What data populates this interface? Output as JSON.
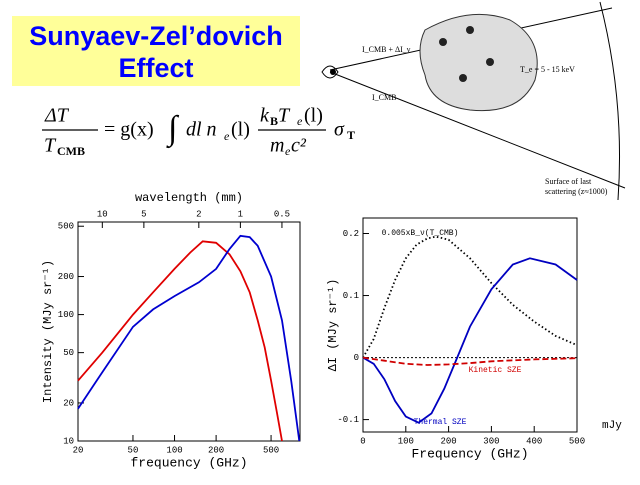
{
  "slide": {
    "title_line1": "Sunyaev-Zel’dovich",
    "title_line2": "Effect",
    "equation": {
      "lhs_num": "ΔT",
      "lhs_den": "T",
      "lhs_den_sub": "CMB",
      "g": "= g(x)",
      "integral": "∫",
      "integrand": "dl n",
      "ne_sub": "e",
      "ne_arg": "(l)",
      "frac_num": "k",
      "frac_num_sub": "B",
      "frac_num2": " T",
      "frac_num2_sub": "e",
      "frac_num2_arg": "(l)",
      "frac_den": "m",
      "frac_den_sub": "e",
      "frac_den2": " c²",
      "sigma": "σ",
      "sigma_sub": "T"
    },
    "diagram": {
      "ray_top": "I_CMB + ΔI_ν",
      "ray_bottom": "I_CMB",
      "cluster_temp": "T_e = 5 - 15 keV",
      "surface_line1": "Surface of last",
      "surface_line2": "scattering (z≈1000)"
    },
    "unit_note": "mJy"
  },
  "chart_data": [
    {
      "type": "line",
      "xlabel": "frequency (GHz)",
      "ylabel": "Intensity (MJy sr⁻¹)",
      "x2label": "wavelength (mm)",
      "xlog": true,
      "ylog": true,
      "xlim": [
        20,
        810
      ],
      "ylim": [
        10,
        540
      ],
      "xticks": [
        20,
        50,
        100,
        200,
        500
      ],
      "yticks": [
        10,
        20,
        50,
        100,
        200,
        500
      ],
      "x2lim": [
        15,
        0.37
      ],
      "x2ticks": [
        10,
        5,
        2,
        1,
        0.5
      ],
      "series": [
        {
          "color": "#e00000",
          "style": "solid",
          "x": [
            20,
            30,
            50,
            70,
            100,
            130,
            160,
            200,
            250,
            300,
            350,
            400,
            450,
            500,
            550,
            600
          ],
          "values": [
            30,
            50,
            100,
            150,
            230,
            310,
            380,
            370,
            300,
            220,
            150,
            90,
            55,
            30,
            17,
            10
          ]
        },
        {
          "color": "#0000d0",
          "style": "solid",
          "x": [
            20,
            30,
            50,
            70,
            100,
            150,
            200,
            250,
            300,
            350,
            400,
            500,
            600,
            700,
            800
          ],
          "values": [
            18,
            35,
            80,
            110,
            140,
            180,
            230,
            330,
            420,
            410,
            350,
            200,
            90,
            30,
            10
          ]
        }
      ]
    },
    {
      "type": "line",
      "xlabel": "Frequency (GHz)",
      "ylabel": "ΔI (MJy sr⁻¹)",
      "xlog": false,
      "ylog": false,
      "xlim": [
        0,
        500
      ],
      "ylim": [
        -0.12,
        0.225
      ],
      "xticks": [
        0,
        100,
        200,
        300,
        400,
        500
      ],
      "yticks": [
        -0.1,
        0,
        0.1,
        0.2
      ],
      "series": [
        {
          "name": "0.005xB_ν(T_CMB)",
          "color": "#000000",
          "style": "dotted",
          "x": [
            0,
            25,
            50,
            75,
            100,
            125,
            150,
            170,
            200,
            250,
            300,
            350,
            400,
            450,
            500
          ],
          "values": [
            0,
            0.03,
            0.08,
            0.125,
            0.16,
            0.182,
            0.192,
            0.195,
            0.19,
            0.16,
            0.12,
            0.085,
            0.058,
            0.035,
            0.02
          ]
        },
        {
          "name": "Thermal SZE",
          "color": "#0000c0",
          "style": "solid",
          "x": [
            0,
            25,
            50,
            75,
            100,
            130,
            160,
            190,
            220,
            250,
            300,
            350,
            390,
            450,
            500
          ],
          "values": [
            0,
            -0.01,
            -0.035,
            -0.07,
            -0.095,
            -0.105,
            -0.09,
            -0.05,
            0,
            0.05,
            0.11,
            0.15,
            0.16,
            0.15,
            0.125
          ]
        },
        {
          "name": "Kinetic SZE",
          "color": "#d00000",
          "style": "dashed",
          "x": [
            0,
            50,
            100,
            150,
            200,
            250,
            300,
            400,
            500
          ],
          "values": [
            0,
            -0.005,
            -0.01,
            -0.012,
            -0.011,
            -0.009,
            -0.006,
            -0.003,
            -0.001
          ]
        }
      ]
    }
  ]
}
